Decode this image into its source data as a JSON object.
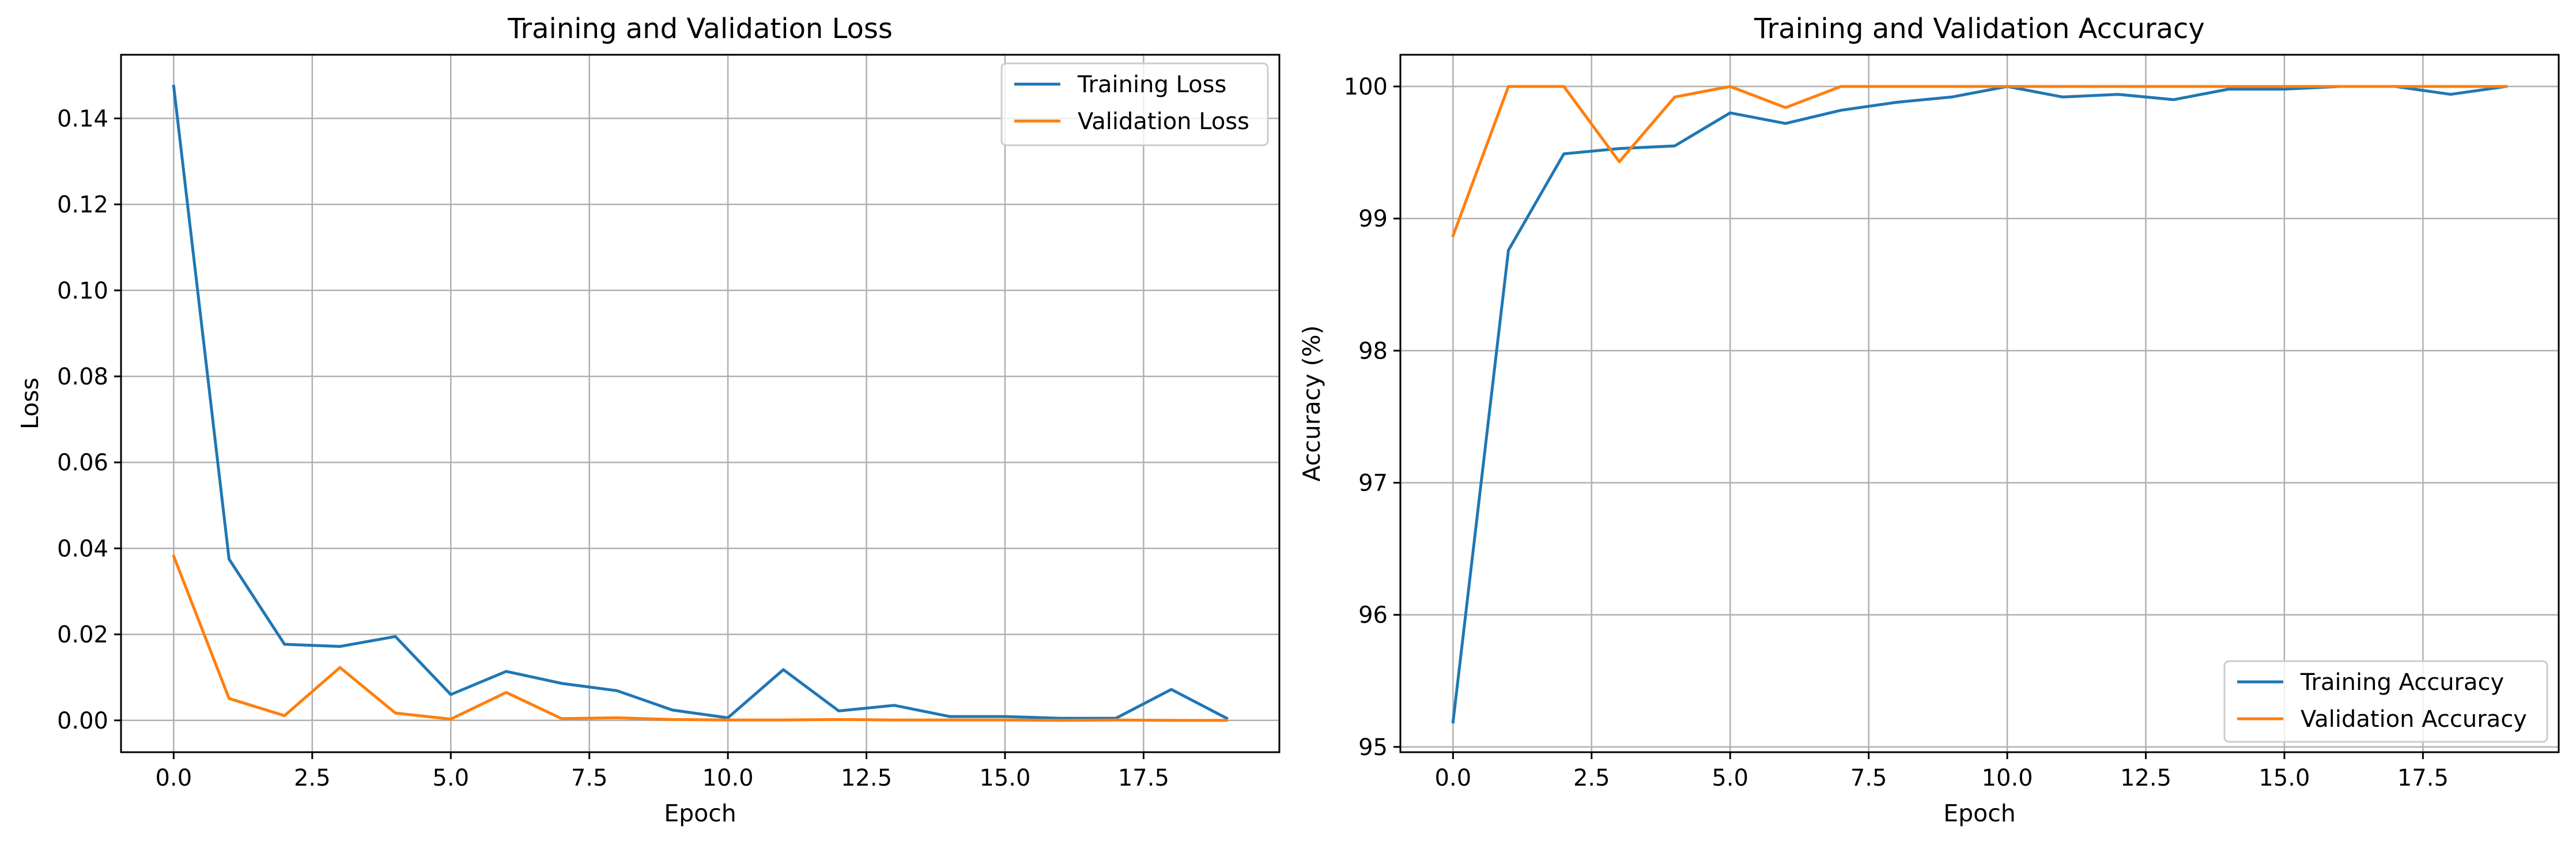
{
  "chart_data": [
    {
      "type": "line",
      "title": "Training and Validation Loss",
      "xlabel": "Epoch",
      "ylabel": "Loss",
      "xlim": [
        -0.95,
        19.95
      ],
      "ylim": [
        -0.0074,
        0.1548
      ],
      "xticks": [
        0.0,
        2.5,
        5.0,
        7.5,
        10.0,
        12.5,
        15.0,
        17.5
      ],
      "xtick_labels": [
        "0.0",
        "2.5",
        "5.0",
        "7.5",
        "10.0",
        "12.5",
        "15.0",
        "17.5"
      ],
      "yticks": [
        0.0,
        0.02,
        0.04,
        0.06,
        0.08,
        0.1,
        0.12,
        0.14
      ],
      "ytick_labels": [
        "0.00",
        "0.02",
        "0.04",
        "0.06",
        "0.08",
        "0.10",
        "0.12",
        "0.14"
      ],
      "grid": true,
      "legend_position": "upper right",
      "x": [
        0,
        1,
        2,
        3,
        4,
        5,
        6,
        7,
        8,
        9,
        10,
        11,
        12,
        13,
        14,
        15,
        16,
        17,
        18,
        19
      ],
      "series": [
        {
          "name": "Training Loss",
          "color": "#1f77b4",
          "values": [
            0.1475,
            0.0375,
            0.0177,
            0.0172,
            0.0195,
            0.006,
            0.0114,
            0.0086,
            0.0069,
            0.0024,
            0.0006,
            0.0118,
            0.0022,
            0.0035,
            0.0009,
            0.0009,
            0.0005,
            0.0005,
            0.0072,
            0.0005
          ]
        },
        {
          "name": "Validation Loss",
          "color": "#ff7f0e",
          "values": [
            0.0382,
            0.0051,
            0.0011,
            0.0123,
            0.0017,
            0.0003,
            0.0065,
            0.0004,
            0.0006,
            0.0002,
            0.0001,
            0.0001,
            0.0002,
            0.0001,
            0.0001,
            0.0001,
            0.0,
            0.0001,
            0.0,
            0.0
          ]
        }
      ]
    },
    {
      "type": "line",
      "title": "Training and Validation Accuracy",
      "xlabel": "Epoch",
      "ylabel": "Accuracy (%)",
      "xlim": [
        -0.95,
        19.95
      ],
      "ylim": [
        94.96,
        100.24
      ],
      "xticks": [
        0.0,
        2.5,
        5.0,
        7.5,
        10.0,
        12.5,
        15.0,
        17.5
      ],
      "xtick_labels": [
        "0.0",
        "2.5",
        "5.0",
        "7.5",
        "10.0",
        "12.5",
        "15.0",
        "17.5"
      ],
      "yticks": [
        95,
        96,
        97,
        98,
        99,
        100
      ],
      "ytick_labels": [
        "95",
        "96",
        "97",
        "98",
        "99",
        "100"
      ],
      "grid": true,
      "legend_position": "lower right",
      "x": [
        0,
        1,
        2,
        3,
        4,
        5,
        6,
        7,
        8,
        9,
        10,
        11,
        12,
        13,
        14,
        15,
        16,
        17,
        18,
        19
      ],
      "series": [
        {
          "name": "Training Accuracy",
          "color": "#1f77b4",
          "values": [
            95.19,
            98.76,
            99.49,
            99.53,
            99.55,
            99.8,
            99.72,
            99.82,
            99.88,
            99.92,
            100.0,
            99.92,
            99.94,
            99.9,
            99.98,
            99.98,
            100.0,
            100.0,
            99.94,
            100.0
          ]
        },
        {
          "name": "Validation Accuracy",
          "color": "#ff7f0e",
          "values": [
            98.87,
            100.0,
            100.0,
            99.43,
            99.92,
            100.0,
            99.84,
            100.0,
            100.0,
            100.0,
            100.0,
            100.0,
            100.0,
            100.0,
            100.0,
            100.0,
            100.0,
            100.0,
            100.0,
            100.0
          ]
        }
      ]
    }
  ]
}
